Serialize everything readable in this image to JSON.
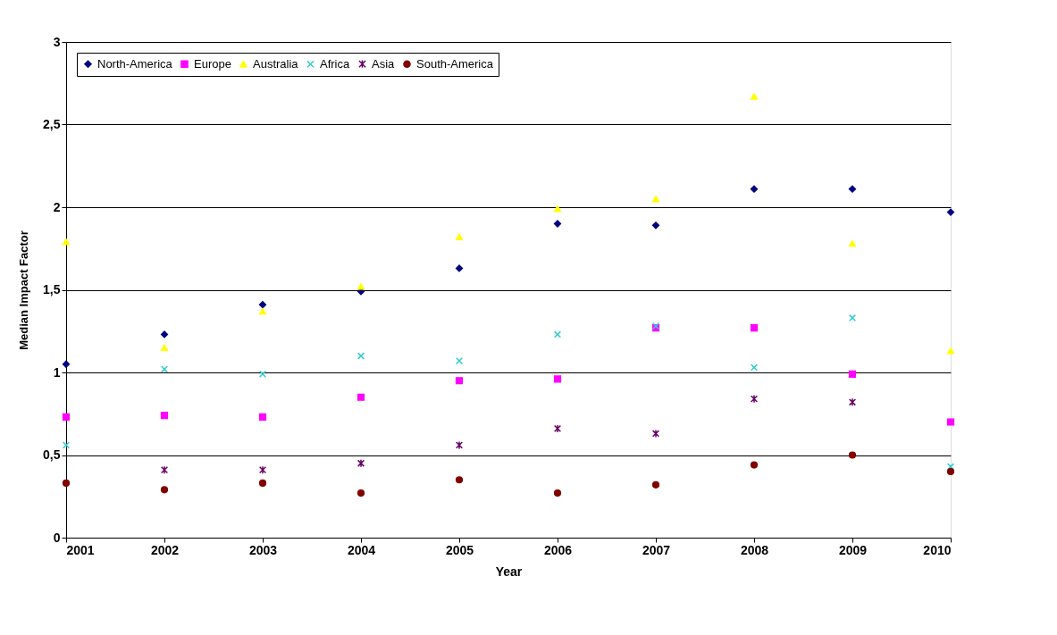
{
  "chart_data": {
    "type": "scatter",
    "xlabel": "Year",
    "ylabel": "Median Impact Factor",
    "x": [
      2001,
      2002,
      2003,
      2004,
      2005,
      2006,
      2007,
      2008,
      2009,
      2010
    ],
    "series": [
      {
        "name": "North-America",
        "color": "#000080",
        "marker": "diamond",
        "values": [
          1.05,
          1.23,
          1.41,
          1.49,
          1.63,
          1.9,
          1.89,
          2.11,
          2.11,
          1.97
        ]
      },
      {
        "name": "Europe",
        "color": "#ff00ff",
        "marker": "square",
        "values": [
          0.73,
          0.74,
          0.73,
          0.85,
          0.95,
          0.96,
          1.27,
          1.27,
          0.99,
          0.7
        ]
      },
      {
        "name": "Australia",
        "color": "#ffff00",
        "marker": "triangle",
        "values": [
          1.79,
          1.15,
          1.37,
          1.52,
          1.82,
          1.99,
          2.05,
          2.67,
          1.78,
          1.13
        ]
      },
      {
        "name": "Africa",
        "color": "#33cccc",
        "marker": "cross",
        "values": [
          0.56,
          1.02,
          0.99,
          1.1,
          1.07,
          1.23,
          1.28,
          1.03,
          1.33,
          0.43
        ]
      },
      {
        "name": "Asia",
        "color": "#660066",
        "marker": "cross",
        "values": [
          null,
          0.41,
          0.41,
          0.45,
          0.56,
          0.66,
          0.63,
          0.84,
          0.82,
          null
        ]
      },
      {
        "name": "South-America",
        "color": "#800000",
        "marker": "circle",
        "values": [
          0.33,
          0.29,
          0.33,
          0.27,
          0.35,
          0.27,
          0.32,
          0.44,
          0.5,
          0.4
        ]
      }
    ],
    "xlim": [
      2001,
      2010
    ],
    "xticks": [
      2001,
      2002,
      2003,
      2004,
      2005,
      2006,
      2007,
      2008,
      2009,
      2010
    ],
    "ylim": [
      0,
      3
    ],
    "yticks": [
      0,
      {
        "value": 0.5,
        "label": "0,5"
      },
      1,
      {
        "value": 1.5,
        "label": "1,5"
      },
      2,
      {
        "value": 2.5,
        "label": "2,5"
      },
      3
    ],
    "grid": "y",
    "legend": "top left"
  }
}
